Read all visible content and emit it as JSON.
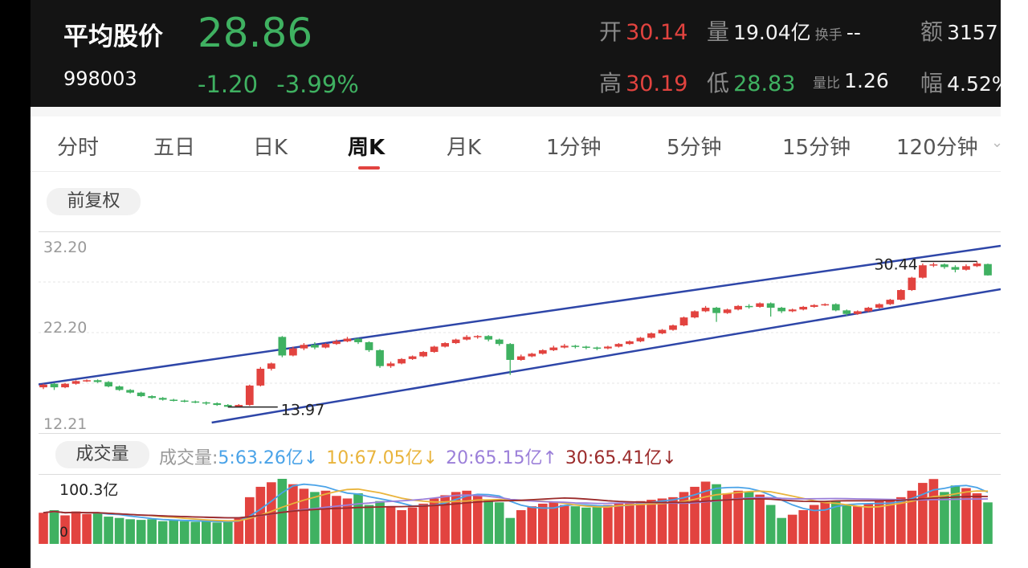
{
  "quote": {
    "name": "平均股价",
    "code": "998003",
    "price": "28.86",
    "change": "-1.20",
    "change_pct": "-3.99%",
    "open_label": "开",
    "open": "30.14",
    "volume_label": "量",
    "volume": "19.04亿",
    "turnover_label": "换手",
    "turnover": "--",
    "amount_label": "额",
    "amount": "3157",
    "high_label": "高",
    "high": "30.19",
    "low_label": "低",
    "low": "28.83",
    "vol_ratio_label": "量比",
    "vol_ratio": "1.26",
    "amp_label": "幅",
    "amp": "4.52%"
  },
  "tabs": [
    "分时",
    "五日",
    "日K",
    "周K",
    "月K",
    "1分钟",
    "5分钟",
    "15分钟",
    "120分钟"
  ],
  "active_tab": "周K",
  "adjust_label": "前复权",
  "colors": {
    "up": "#e2433f",
    "down": "#3fb161",
    "channel": "#2e46a8",
    "ma5": "#4aa3e8",
    "ma10": "#e9b43c",
    "ma20": "#9b7fd9",
    "ma30": "#9b2b2b"
  },
  "volume_panel": {
    "label": "成交量",
    "legend_prefix": "成交量:",
    "ma5": "5:63.26亿↓",
    "ma10": "10:67.05亿↓",
    "ma20": "20:65.15亿↑",
    "ma30": "30:65.41亿↓",
    "max_label": "100.3亿",
    "zero_label": "0"
  },
  "chart_data": {
    "type": "candlestick",
    "y_ticks": [
      "32.20",
      "22.20",
      "12.21"
    ],
    "ylim": [
      12.21,
      32.2
    ],
    "annotations": {
      "high": "30.44",
      "low": "13.97"
    },
    "closes": [
      16.5,
      16.2,
      16.6,
      16.9,
      17.0,
      16.8,
      16.3,
      15.9,
      15.6,
      15.2,
      15.0,
      14.8,
      14.7,
      14.6,
      14.5,
      14.4,
      14.2,
      14.0,
      14.2,
      16.4,
      18.3,
      18.9,
      19.8,
      20.6,
      21.0,
      20.7,
      21.1,
      21.4,
      21.7,
      21.3,
      20.4,
      18.6,
      18.9,
      19.4,
      19.7,
      20.2,
      20.8,
      21.2,
      21.6,
      21.9,
      22.0,
      21.6,
      21.1,
      19.3,
      19.7,
      20.0,
      20.4,
      20.7,
      20.9,
      20.8,
      20.7,
      20.6,
      20.8,
      21.1,
      21.4,
      21.8,
      22.3,
      22.7,
      23.2,
      24.1,
      24.8,
      25.2,
      24.6,
      25.0,
      25.4,
      25.3,
      25.7,
      25.2,
      24.8,
      25.0,
      25.3,
      25.5,
      25.6,
      24.9,
      24.5,
      24.8,
      25.2,
      25.6,
      26.1,
      27.2,
      28.6,
      30.0,
      30.1,
      29.8,
      29.5,
      29.9,
      30.2,
      28.9
    ],
    "candles": [
      [
        16.2,
        16.5,
        16.6,
        16.0
      ],
      [
        16.6,
        16.2,
        16.7,
        15.9
      ],
      [
        16.2,
        16.6,
        16.7,
        16.1
      ],
      [
        16.6,
        16.9,
        17.0,
        16.5
      ],
      [
        16.9,
        17.0,
        17.1,
        16.8
      ],
      [
        17.0,
        16.8,
        17.1,
        16.7
      ],
      [
        16.8,
        16.3,
        16.9,
        16.2
      ],
      [
        16.3,
        15.9,
        16.4,
        15.8
      ],
      [
        15.9,
        15.6,
        16.0,
        15.5
      ],
      [
        15.6,
        15.2,
        15.7,
        15.1
      ],
      [
        15.2,
        15.0,
        15.3,
        14.9
      ],
      [
        15.0,
        14.8,
        15.1,
        14.7
      ],
      [
        14.8,
        14.7,
        14.9,
        14.6
      ],
      [
        14.7,
        14.6,
        14.8,
        14.5
      ],
      [
        14.6,
        14.5,
        14.7,
        14.4
      ],
      [
        14.5,
        14.4,
        14.6,
        14.2
      ],
      [
        14.4,
        14.2,
        14.5,
        14.1
      ],
      [
        14.2,
        14.0,
        14.3,
        13.97
      ],
      [
        14.0,
        14.2,
        14.3,
        13.97
      ],
      [
        14.2,
        16.4,
        16.5,
        14.1
      ],
      [
        16.4,
        18.3,
        18.5,
        16.3
      ],
      [
        18.3,
        18.9,
        19.0,
        18.1
      ],
      [
        21.9,
        19.8,
        22.0,
        19.6
      ],
      [
        19.8,
        20.6,
        20.8,
        19.7
      ],
      [
        20.6,
        21.0,
        21.2,
        20.4
      ],
      [
        21.0,
        20.7,
        21.3,
        20.5
      ],
      [
        20.7,
        21.1,
        21.2,
        20.6
      ],
      [
        21.1,
        21.4,
        21.6,
        21.0
      ],
      [
        21.4,
        21.7,
        21.9,
        21.3
      ],
      [
        21.7,
        21.3,
        21.8,
        21.1
      ],
      [
        21.3,
        20.4,
        21.4,
        20.2
      ],
      [
        20.4,
        18.6,
        20.5,
        18.4
      ],
      [
        18.6,
        18.9,
        19.1,
        18.4
      ],
      [
        18.9,
        19.4,
        19.5,
        18.8
      ],
      [
        19.4,
        19.7,
        19.8,
        19.3
      ],
      [
        19.7,
        20.2,
        20.3,
        19.6
      ],
      [
        20.2,
        20.8,
        20.9,
        20.1
      ],
      [
        20.8,
        21.2,
        21.3,
        20.7
      ],
      [
        21.2,
        21.6,
        21.7,
        21.1
      ],
      [
        21.6,
        21.9,
        22.1,
        21.5
      ],
      [
        21.9,
        22.0,
        22.1,
        21.7
      ],
      [
        22.0,
        21.6,
        22.1,
        21.4
      ],
      [
        21.6,
        21.1,
        21.7,
        20.9
      ],
      [
        21.1,
        19.3,
        21.2,
        17.6
      ],
      [
        19.3,
        19.7,
        19.9,
        19.2
      ],
      [
        19.7,
        20.0,
        20.1,
        19.6
      ],
      [
        20.0,
        20.4,
        20.5,
        19.9
      ],
      [
        20.4,
        20.7,
        20.9,
        20.3
      ],
      [
        20.7,
        20.9,
        21.1,
        20.6
      ],
      [
        20.9,
        20.8,
        21.0,
        20.6
      ],
      [
        20.8,
        20.7,
        20.9,
        20.5
      ],
      [
        20.7,
        20.6,
        20.8,
        20.4
      ],
      [
        20.6,
        20.8,
        20.9,
        20.5
      ],
      [
        20.8,
        21.1,
        21.2,
        20.7
      ],
      [
        21.1,
        21.4,
        21.5,
        21.0
      ],
      [
        21.4,
        21.8,
        21.9,
        21.3
      ],
      [
        21.8,
        22.3,
        22.4,
        21.7
      ],
      [
        22.3,
        22.7,
        22.8,
        22.2
      ],
      [
        22.7,
        23.2,
        23.3,
        22.6
      ],
      [
        23.2,
        24.1,
        24.2,
        23.1
      ],
      [
        24.1,
        24.8,
        24.9,
        24.0
      ],
      [
        24.8,
        25.2,
        25.4,
        24.7
      ],
      [
        25.2,
        24.6,
        25.3,
        23.6
      ],
      [
        24.6,
        25.0,
        25.1,
        24.5
      ],
      [
        25.0,
        25.4,
        25.5,
        24.9
      ],
      [
        25.4,
        25.3,
        25.6,
        25.1
      ],
      [
        25.3,
        25.7,
        25.8,
        25.2
      ],
      [
        25.7,
        25.2,
        25.8,
        24.2
      ],
      [
        25.2,
        24.8,
        25.3,
        24.6
      ],
      [
        24.8,
        25.0,
        25.1,
        24.7
      ],
      [
        25.0,
        25.3,
        25.4,
        24.9
      ],
      [
        25.3,
        25.5,
        25.6,
        25.2
      ],
      [
        25.5,
        25.6,
        25.7,
        25.4
      ],
      [
        25.6,
        24.9,
        25.7,
        24.8
      ],
      [
        24.9,
        24.5,
        25.0,
        24.3
      ],
      [
        24.5,
        24.8,
        24.9,
        24.4
      ],
      [
        24.8,
        25.2,
        25.3,
        24.7
      ],
      [
        25.2,
        25.6,
        25.7,
        25.1
      ],
      [
        25.6,
        26.1,
        26.2,
        25.5
      ],
      [
        26.1,
        27.2,
        27.3,
        26.0
      ],
      [
        27.2,
        28.6,
        28.7,
        27.1
      ],
      [
        28.6,
        30.0,
        30.2,
        28.5
      ],
      [
        30.0,
        30.1,
        30.3,
        29.8
      ],
      [
        30.1,
        29.8,
        30.2,
        29.6
      ],
      [
        29.8,
        29.5,
        30.0,
        29.2
      ],
      [
        29.5,
        29.9,
        30.1,
        29.4
      ],
      [
        29.9,
        30.2,
        30.44,
        29.8
      ],
      [
        30.14,
        28.86,
        30.19,
        28.83
      ]
    ],
    "volumes": [
      48,
      52,
      44,
      50,
      46,
      48,
      42,
      40,
      38,
      37,
      38,
      35,
      36,
      35,
      34,
      35,
      33,
      34,
      40,
      72,
      88,
      95,
      100.3,
      92,
      85,
      80,
      82,
      74,
      70,
      78,
      60,
      66,
      58,
      52,
      56,
      62,
      70,
      75,
      80,
      82,
      75,
      68,
      64,
      40,
      52,
      58,
      62,
      64,
      60,
      58,
      56,
      57,
      60,
      62,
      64,
      66,
      68,
      70,
      72,
      80,
      88,
      96,
      92,
      78,
      82,
      80,
      76,
      60,
      40,
      45,
      52,
      60,
      64,
      66,
      60,
      58,
      62,
      66,
      68,
      72,
      82,
      94,
      100,
      80,
      90,
      86,
      78,
      64
    ],
    "channel_upper": [
      [
        16.5,
        0
      ],
      [
        32.2,
        1
      ]
    ],
    "channel_lower": [
      [
        12.21,
        0.18
      ],
      [
        27.3,
        1
      ]
    ]
  }
}
